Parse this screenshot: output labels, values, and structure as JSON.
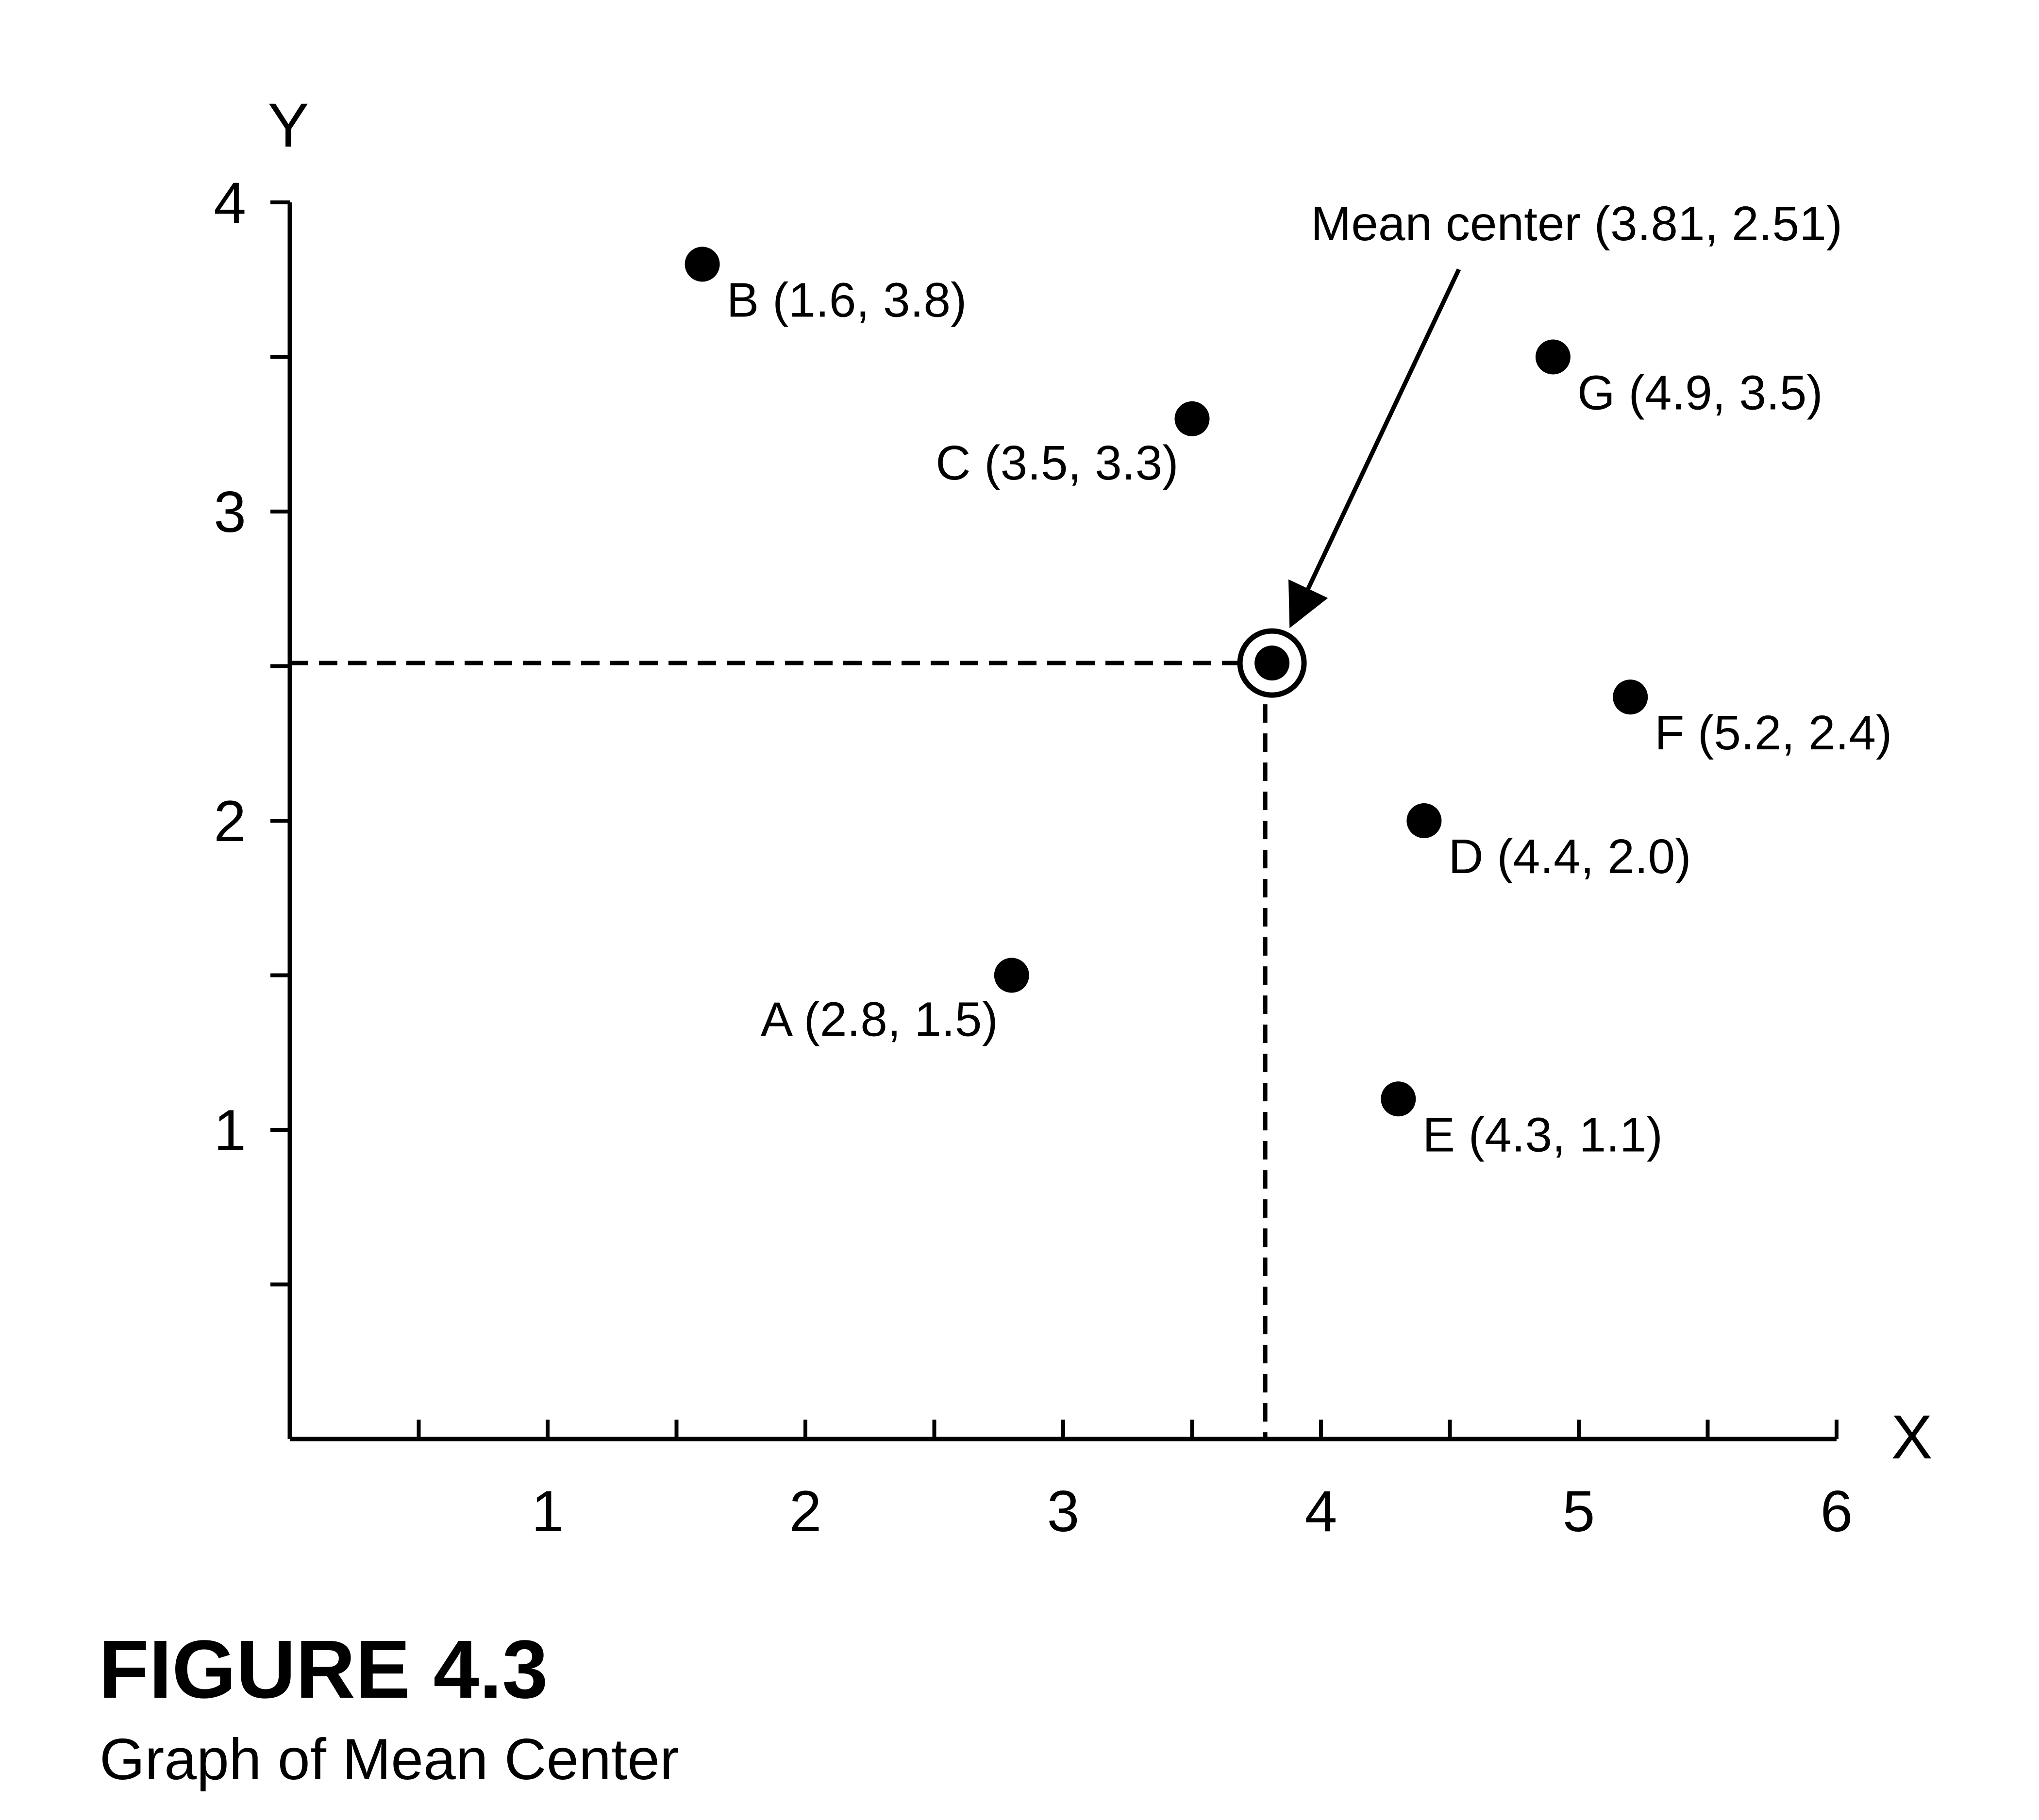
{
  "chart_data": {
    "type": "scatter",
    "xlabel": "X",
    "ylabel": "Y",
    "xlim": [
      0,
      6
    ],
    "ylim": [
      0,
      4
    ],
    "x_ticks": [
      "1",
      "2",
      "3",
      "4",
      "5",
      "6"
    ],
    "y_ticks": [
      "1",
      "2",
      "3",
      "4"
    ],
    "points": [
      {
        "id": "A",
        "x": 2.8,
        "y": 1.5,
        "label": "A (2.8, 1.5)",
        "label_side": "below-left"
      },
      {
        "id": "B",
        "x": 1.6,
        "y": 3.8,
        "label": "B (1.6, 3.8)",
        "label_side": "below-right"
      },
      {
        "id": "C",
        "x": 3.5,
        "y": 3.3,
        "label": "C (3.5, 3.3)",
        "label_side": "below-left"
      },
      {
        "id": "D",
        "x": 4.4,
        "y": 2.0,
        "label": "D (4.4, 2.0)",
        "label_side": "below-right"
      },
      {
        "id": "E",
        "x": 4.3,
        "y": 1.1,
        "label": "E (4.3, 1.1)",
        "label_side": "below-right"
      },
      {
        "id": "F",
        "x": 5.2,
        "y": 2.4,
        "label": "F (5.2, 2.4)",
        "label_side": "below-right"
      },
      {
        "id": "G",
        "x": 4.9,
        "y": 3.5,
        "label": "G (4.9, 3.5)",
        "label_side": "below-right"
      }
    ],
    "mean_center": {
      "x": 3.81,
      "y": 2.51,
      "label": "Mean center (3.81, 2.51)"
    },
    "grid": false,
    "legend": false
  },
  "figure": {
    "number": "FIGURE 4.3",
    "caption": "Graph of Mean Center"
  },
  "colors": {
    "ink": "#000000",
    "background": "#ffffff"
  }
}
